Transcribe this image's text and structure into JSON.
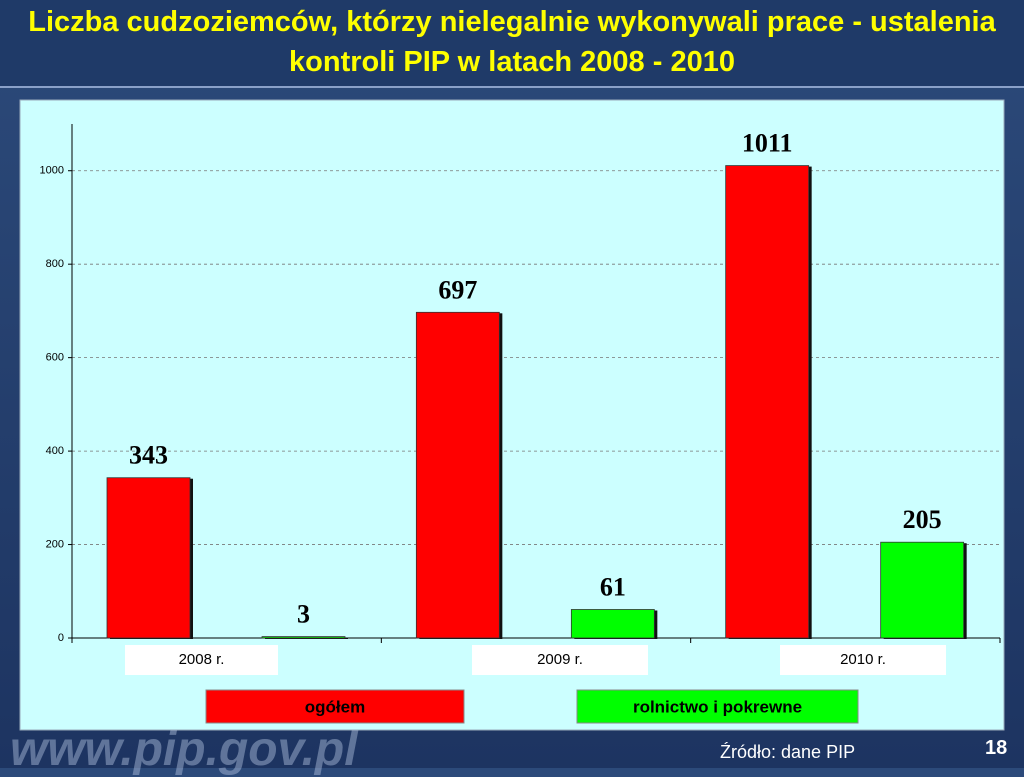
{
  "chart_data": {
    "type": "bar",
    "title": "Liczba cudzoziemców, którzy nielegalnie wykonywali prace - ustalenia kontroli PIP w latach 2008 - 2010",
    "categories": [
      "2008 r.",
      "2009 r.",
      "2010 r."
    ],
    "series": [
      {
        "name": "ogółem",
        "color": "#ff0000",
        "values": [
          343,
          697,
          1011
        ]
      },
      {
        "name": "rolnictwo i pokrewne",
        "color": "#00ff00",
        "values": [
          3,
          61,
          205
        ]
      }
    ],
    "ylim": [
      0,
      1100
    ],
    "yticks": [
      0,
      200,
      400,
      600,
      800,
      1000
    ],
    "grid": true
  },
  "source": "Źródło: dane PIP",
  "page_number": "18",
  "watermark": "www.pip.gov.pl"
}
